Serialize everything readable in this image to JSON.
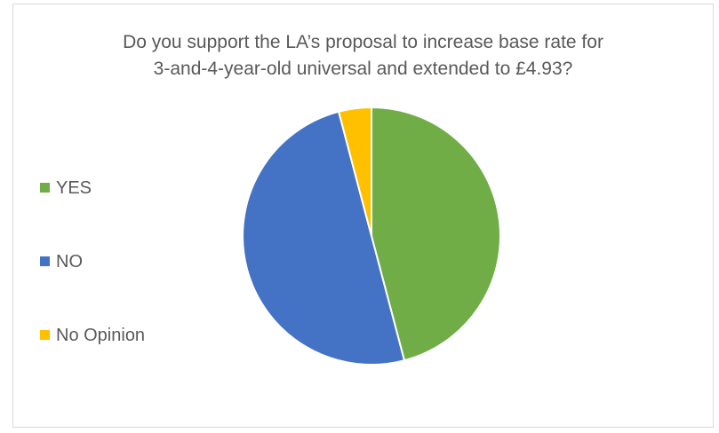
{
  "chart_data": {
    "type": "pie",
    "title": "Do you support the LA’s proposal to increase base rate for 3-and-4-year-old universal and extended to £4.93?",
    "title_lines": [
      "Do you support the LA’s proposal to increase base rate for",
      "3-and-4-year-old universal and extended to £4.93?"
    ],
    "categories": [
      "YES",
      "NO",
      "No Opinion"
    ],
    "values": [
      45.9,
      50.0,
      4.1
    ],
    "colors": [
      "#70ad47",
      "#4472c4",
      "#ffc000"
    ],
    "start_angle_deg": 0,
    "direction": "clockwise",
    "legend_position": "left",
    "grid": false
  }
}
